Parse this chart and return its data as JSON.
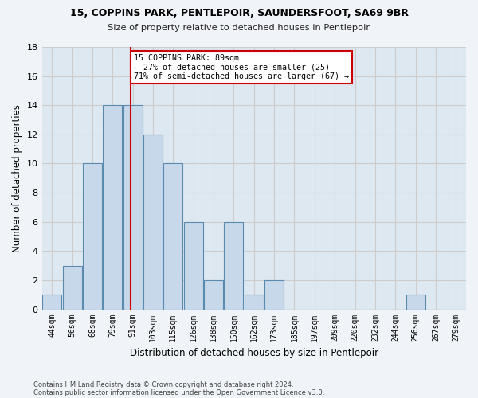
{
  "title1": "15, COPPINS PARK, PENTLEPOIR, SAUNDERSFOOT, SA69 9BR",
  "title2": "Size of property relative to detached houses in Pentlepoir",
  "xlabel": "Distribution of detached houses by size in Pentlepoir",
  "ylabel": "Number of detached properties",
  "footnote1": "Contains HM Land Registry data © Crown copyright and database right 2024.",
  "footnote2": "Contains public sector information licensed under the Open Government Licence v3.0.",
  "bin_labels": [
    "44sqm",
    "56sqm",
    "68sqm",
    "79sqm",
    "91sqm",
    "103sqm",
    "115sqm",
    "126sqm",
    "138sqm",
    "150sqm",
    "162sqm",
    "173sqm",
    "185sqm",
    "197sqm",
    "209sqm",
    "220sqm",
    "232sqm",
    "244sqm",
    "256sqm",
    "267sqm",
    "279sqm"
  ],
  "bar_values": [
    1,
    3,
    10,
    14,
    14,
    12,
    10,
    6,
    2,
    6,
    1,
    2,
    0,
    0,
    0,
    0,
    0,
    0,
    1,
    0,
    0
  ],
  "bar_color": "#c8d8eb",
  "bar_edge_color": "#5a8ab0",
  "vline_x_index": 4,
  "annotation_text1": "15 COPPINS PARK: 89sqm",
  "annotation_text2": "← 27% of detached houses are smaller (25)",
  "annotation_text3": "71% of semi-detached houses are larger (67) →",
  "annotation_box_color": "#ffffff",
  "annotation_box_edge": "#cc0000",
  "vline_color": "#cc0000",
  "ylim": [
    0,
    18
  ],
  "yticks": [
    0,
    2,
    4,
    6,
    8,
    10,
    12,
    14,
    16,
    18
  ],
  "grid_color": "#cccccc",
  "bg_color": "#dde8f0",
  "fig_bg_color": "#f0f4f8"
}
